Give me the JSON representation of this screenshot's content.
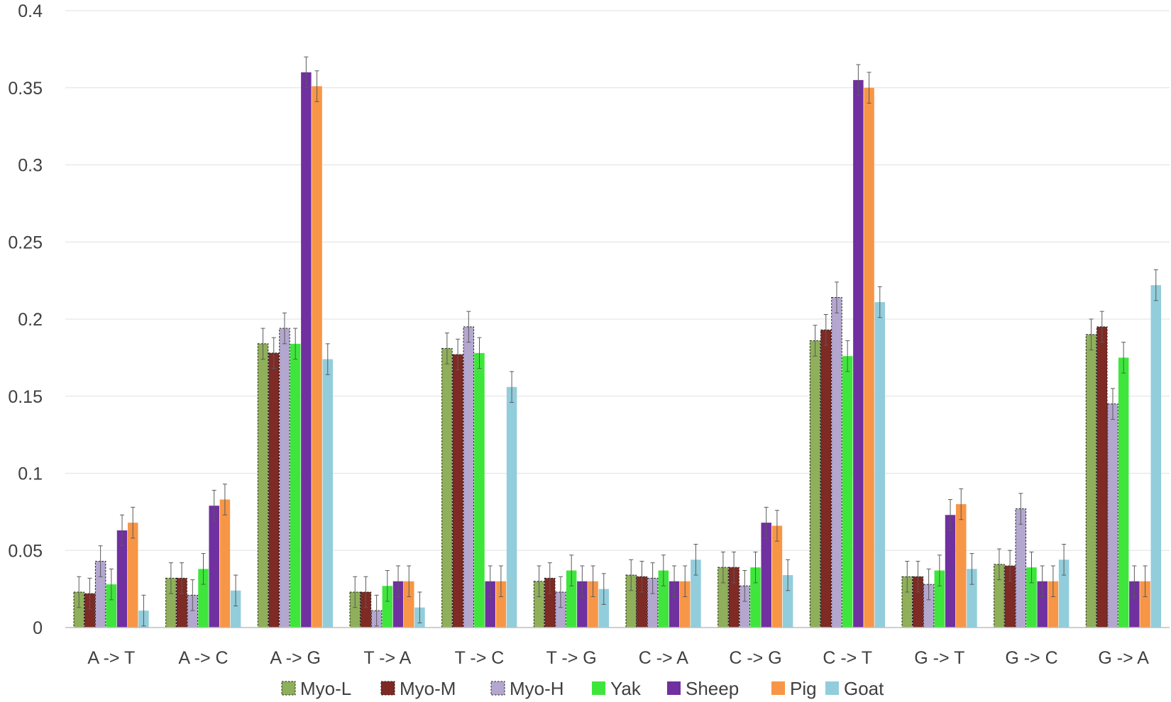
{
  "chart_data": {
    "type": "bar",
    "title": "",
    "xlabel": "",
    "ylabel": "",
    "ylim": [
      0,
      0.4
    ],
    "yticks": [
      "0",
      "0.05",
      "0.1",
      "0.15",
      "0.2",
      "0.25",
      "0.3",
      "0.35",
      "0.4"
    ],
    "grid": true,
    "legend_position": "bottom",
    "categories": [
      "A -> T",
      "A -> C",
      "A -> G",
      "T -> A",
      "T -> C",
      "T -> G",
      "C -> A",
      "C -> G",
      "C -> T",
      "G -> T",
      "G -> C",
      "G -> A"
    ],
    "series": [
      {
        "name": "Myo-L",
        "color": "#8faf5a",
        "dashed": true,
        "values": [
          0.023,
          0.032,
          0.184,
          0.023,
          0.181,
          0.03,
          0.034,
          0.039,
          0.186,
          0.033,
          0.041,
          0.19
        ],
        "errors": [
          0.01,
          0.01,
          0.01,
          0.01,
          0.01,
          0.01,
          0.01,
          0.01,
          0.01,
          0.01,
          0.01,
          0.01
        ]
      },
      {
        "name": "Myo-M",
        "color": "#7f2a24",
        "dashed": true,
        "values": [
          0.022,
          0.032,
          0.178,
          0.023,
          0.177,
          0.032,
          0.033,
          0.039,
          0.193,
          0.033,
          0.04,
          0.195
        ],
        "errors": [
          0.01,
          0.01,
          0.01,
          0.01,
          0.01,
          0.01,
          0.01,
          0.01,
          0.01,
          0.01,
          0.01,
          0.01
        ]
      },
      {
        "name": "Myo-H",
        "color": "#b4a7cf",
        "dashed": true,
        "values": [
          0.043,
          0.021,
          0.194,
          0.011,
          0.195,
          0.023,
          0.032,
          0.027,
          0.214,
          0.028,
          0.077,
          0.145
        ],
        "errors": [
          0.01,
          0.01,
          0.01,
          0.01,
          0.01,
          0.01,
          0.01,
          0.01,
          0.01,
          0.01,
          0.01,
          0.01
        ]
      },
      {
        "name": "Yak",
        "color": "#3ee63c",
        "dashed": false,
        "values": [
          0.028,
          0.038,
          0.184,
          0.027,
          0.178,
          0.037,
          0.037,
          0.039,
          0.176,
          0.037,
          0.039,
          0.175
        ],
        "errors": [
          0.01,
          0.01,
          0.01,
          0.01,
          0.01,
          0.01,
          0.01,
          0.01,
          0.01,
          0.01,
          0.01,
          0.01
        ]
      },
      {
        "name": "Sheep",
        "color": "#7030a0",
        "dashed": false,
        "values": [
          0.063,
          0.079,
          0.36,
          0.03,
          0.03,
          0.03,
          0.03,
          0.068,
          0.355,
          0.073,
          0.03,
          0.03
        ],
        "errors": [
          0.01,
          0.01,
          0.01,
          0.01,
          0.01,
          0.01,
          0.01,
          0.01,
          0.01,
          0.01,
          0.01,
          0.01
        ]
      },
      {
        "name": "Pig",
        "color": "#f79646",
        "dashed": false,
        "values": [
          0.068,
          0.083,
          0.351,
          0.03,
          0.03,
          0.03,
          0.03,
          0.066,
          0.35,
          0.08,
          0.03,
          0.03
        ],
        "errors": [
          0.01,
          0.01,
          0.01,
          0.01,
          0.01,
          0.01,
          0.01,
          0.01,
          0.01,
          0.01,
          0.01,
          0.01
        ]
      },
      {
        "name": "Goat",
        "color": "#92cddc",
        "dashed": false,
        "values": [
          0.011,
          0.024,
          0.174,
          0.013,
          0.156,
          0.025,
          0.044,
          0.034,
          0.211,
          0.038,
          0.044,
          0.222
        ],
        "errors": [
          0.01,
          0.01,
          0.01,
          0.01,
          0.01,
          0.01,
          0.01,
          0.01,
          0.01,
          0.01,
          0.01,
          0.01
        ]
      }
    ]
  }
}
